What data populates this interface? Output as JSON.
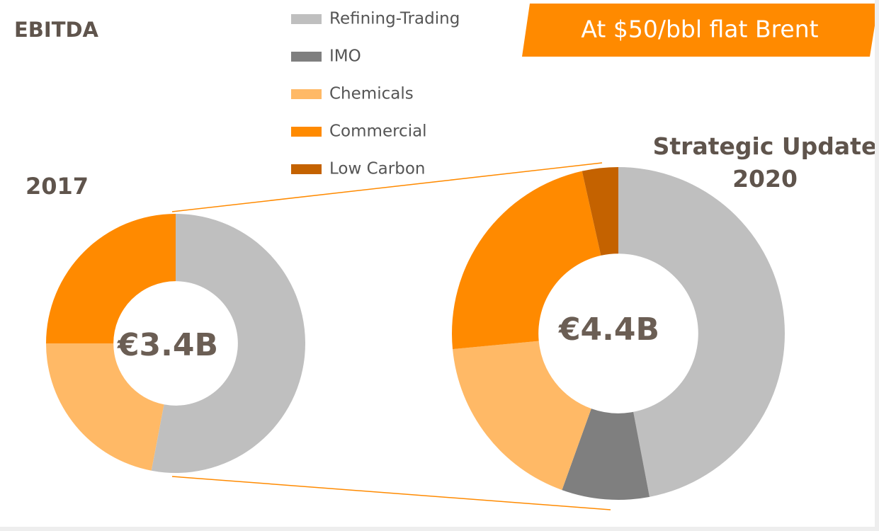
{
  "chart_data": {
    "type": "donut",
    "title": "EBITDA",
    "subtitle": "At $50/bbl flat Brent",
    "categories": [
      "Refining-Trading",
      "IMO",
      "Chemicals",
      "Commercial",
      "Low Carbon"
    ],
    "colors": [
      "#bfbfbf",
      "#7f7f7f",
      "#ffb966",
      "#ff8a00",
      "#c46200"
    ],
    "pies": [
      {
        "label": "2017",
        "total_label": "€3.4B",
        "values": [
          53,
          0,
          22,
          25,
          0
        ]
      },
      {
        "label": "Strategic Update 2020",
        "total_label": "€4.4B",
        "values": [
          47,
          8.5,
          18,
          23,
          3.5
        ]
      }
    ]
  }
}
